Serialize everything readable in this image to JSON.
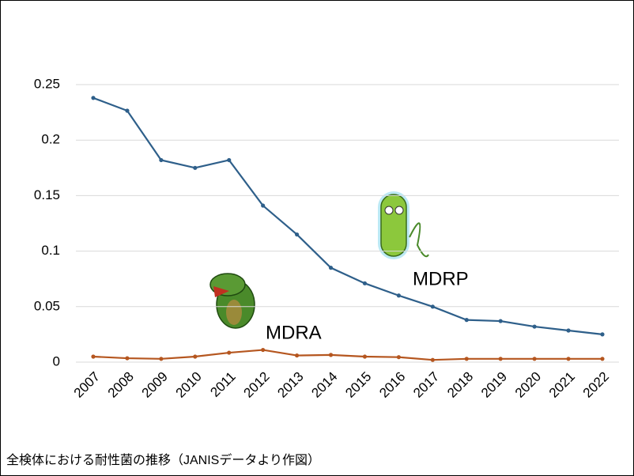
{
  "chart_data": {
    "type": "line",
    "categories": [
      "2007",
      "2008",
      "2009",
      "2010",
      "2011",
      "2012",
      "2013",
      "2014",
      "2015",
      "2016",
      "2017",
      "2018",
      "2019",
      "2020",
      "2021",
      "2022"
    ],
    "series": [
      {
        "name": "MDRP",
        "color": "#2e5f8a",
        "values": [
          0.238,
          0.2265,
          0.182,
          0.175,
          0.182,
          0.141,
          0.115,
          0.085,
          0.071,
          0.06,
          0.05,
          0.038,
          0.037,
          0.032,
          0.0285,
          0.025
        ]
      },
      {
        "name": "MDRA",
        "color": "#b5561f",
        "values": [
          0.005,
          0.0035,
          0.003,
          0.005,
          0.0085,
          0.011,
          0.006,
          0.0065,
          0.005,
          0.0045,
          0.002,
          0.003,
          0.003,
          0.003,
          0.003,
          0.003
        ]
      }
    ],
    "ylim": [
      0,
      0.25
    ],
    "yticks": [
      0,
      0.05,
      0.1,
      0.15,
      0.2,
      0.25
    ],
    "grid": true
  },
  "caption": "全検体における耐性菌の推移（JANISデータより作図）"
}
